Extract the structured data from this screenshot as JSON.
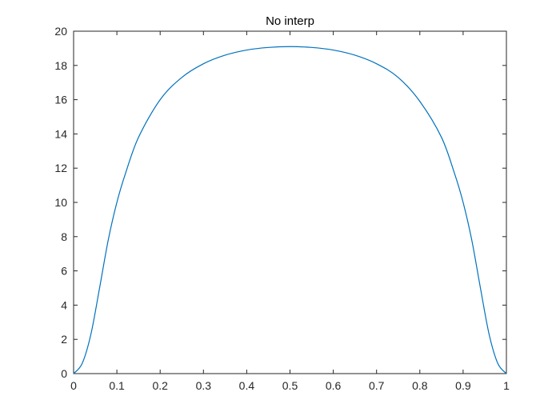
{
  "chart_data": {
    "type": "line",
    "title": "No interp",
    "xlabel": "",
    "ylabel": "",
    "xlim": [
      0,
      1
    ],
    "ylim": [
      0,
      20
    ],
    "xticks": [
      "0",
      "0.1",
      "0.2",
      "0.3",
      "0.4",
      "0.5",
      "0.6",
      "0.7",
      "0.8",
      "0.9",
      "1"
    ],
    "yticks": [
      "0",
      "2",
      "4",
      "6",
      "8",
      "10",
      "12",
      "14",
      "16",
      "18",
      "20"
    ],
    "grid": false,
    "legend": "none",
    "series": [
      {
        "color": "#0072BD",
        "x": [
          0,
          0.02,
          0.04,
          0.06,
          0.08,
          0.1,
          0.12,
          0.15,
          0.2,
          0.25,
          0.3,
          0.35,
          0.4,
          0.45,
          0.5,
          0.55,
          0.6,
          0.65,
          0.7,
          0.75,
          0.8,
          0.85,
          0.88,
          0.9,
          0.92,
          0.94,
          0.96,
          0.98,
          1
        ],
        "y": [
          0,
          0.6,
          2.3,
          5.0,
          7.8,
          10.0,
          11.7,
          13.8,
          16.0,
          17.3,
          18.1,
          18.6,
          18.9,
          19.05,
          19.1,
          19.05,
          18.9,
          18.6,
          18.1,
          17.3,
          15.9,
          13.8,
          11.7,
          10.0,
          7.8,
          5.0,
          2.3,
          0.6,
          0
        ]
      }
    ]
  }
}
